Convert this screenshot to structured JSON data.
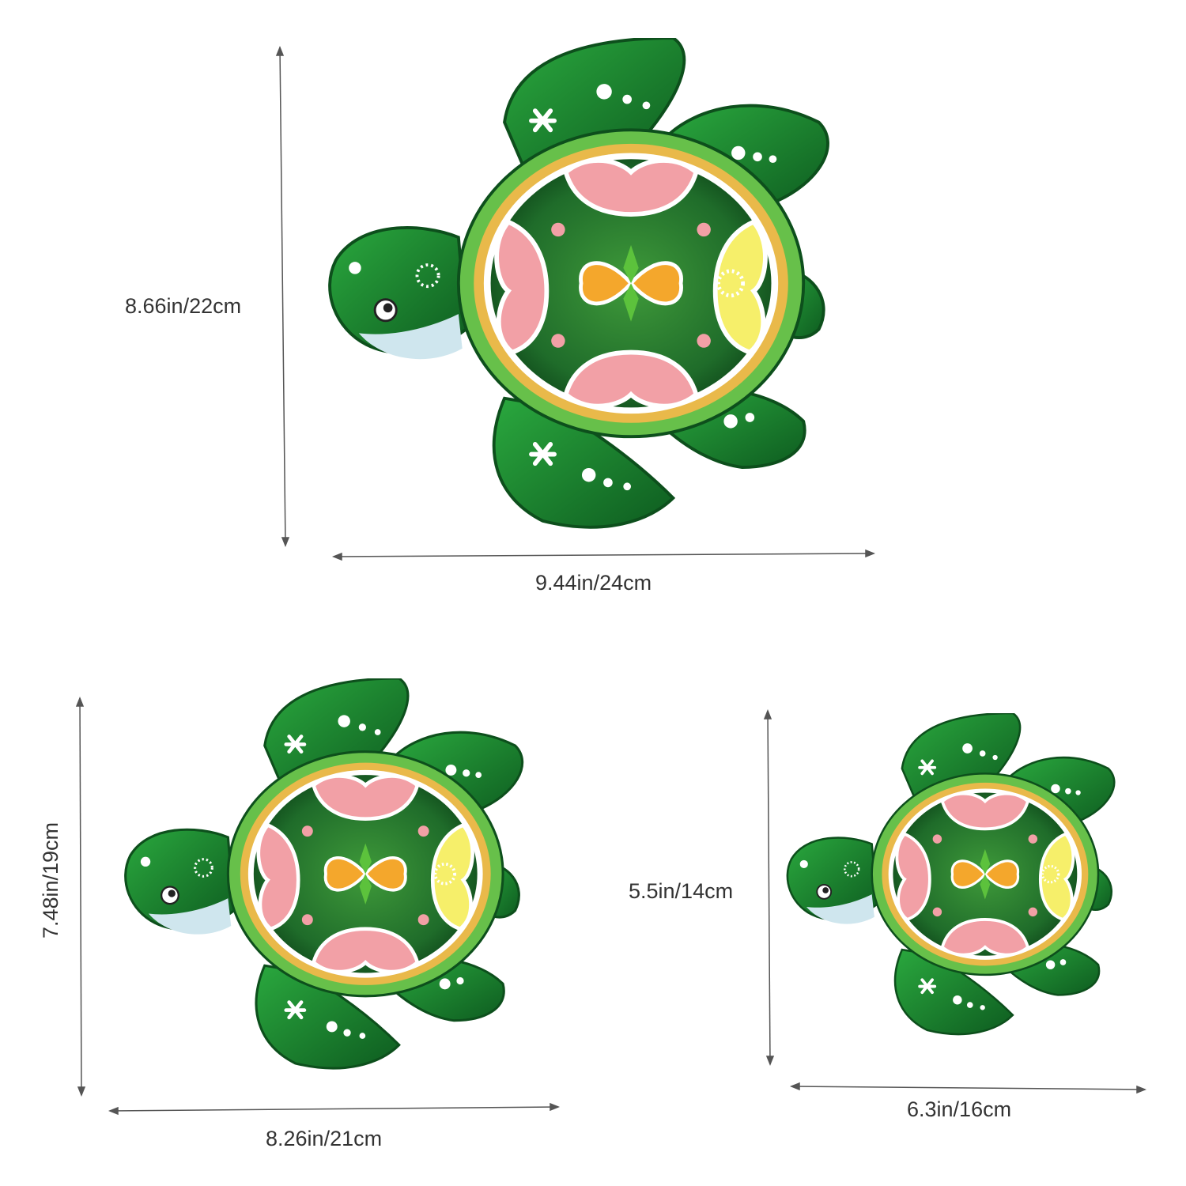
{
  "products": [
    {
      "height_label": "8.66in/22cm",
      "width_label": "9.44in/24cm"
    },
    {
      "height_label": "7.48in/19cm",
      "width_label": "8.26in/21cm"
    },
    {
      "height_label": "5.5in/14cm",
      "width_label": "6.3in/16cm"
    }
  ],
  "colors": {
    "turtle_green": "#1e8a34",
    "turtle_dark_green": "#0f5a22",
    "shell_rim_gold": "#e9b94a",
    "petal_pink": "#f2a0a6",
    "petal_yellow": "#f6ef6a",
    "petal_orange": "#f4a72c",
    "face_light_blue": "#cfe6ee",
    "dimension_line": "#555555"
  }
}
